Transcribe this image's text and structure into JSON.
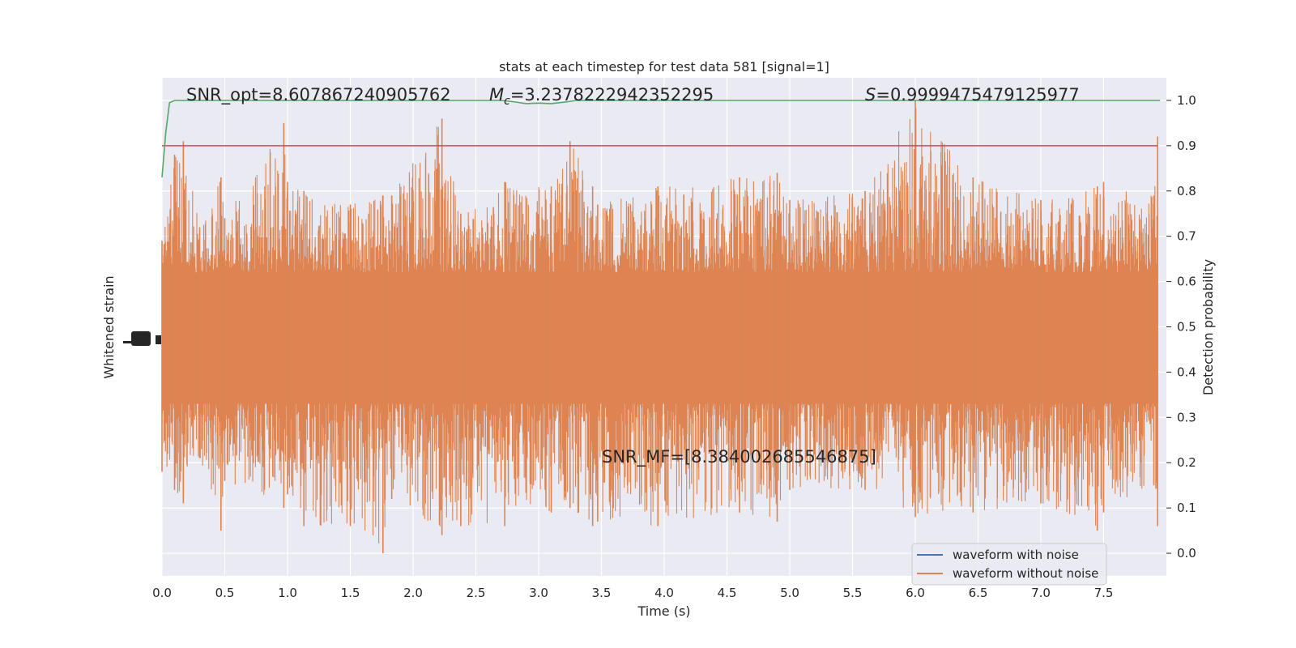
{
  "chart_data": {
    "type": "line",
    "title": "stats at each timestep for test data 581 [signal=1]",
    "xlabel": "Time (s)",
    "ylabel_left": "Whitened strain",
    "ylabel_right": "Detection probability",
    "xlim": [
      0.0,
      8.0
    ],
    "ylim_right": [
      -0.05,
      1.05
    ],
    "x_ticks": [
      "0.0",
      "0.5",
      "1.0",
      "1.5",
      "2.0",
      "2.5",
      "3.0",
      "3.5",
      "4.0",
      "4.5",
      "5.0",
      "5.5",
      "6.0",
      "6.5",
      "7.0",
      "7.5"
    ],
    "y_ticks_right": [
      "0.0",
      "0.1",
      "0.2",
      "0.3",
      "0.4",
      "0.5",
      "0.6",
      "0.7",
      "0.8",
      "0.9",
      "1.0"
    ],
    "grid": true,
    "legend_position": "lower right",
    "annotations": {
      "snr_opt": "SNR_opt=8.607867240905762",
      "mc_symbol": "M",
      "mc_sub": "c",
      "mc_value": "=3.2378222942352295",
      "s_symbol": "S",
      "s_value": "=0.9999475479125977",
      "snr_mf": "SNR_MF=[8.384002685546875]"
    },
    "series": [
      {
        "name": "waveform with noise",
        "color": "#4c72b0"
      },
      {
        "name": "waveform without noise",
        "color": "#dd8452"
      }
    ],
    "threshold": {
      "value": 0.9,
      "color": "#c44e52"
    },
    "detection_probability": {
      "color": "#55a868",
      "x": [
        0.0,
        0.03,
        0.06,
        0.1,
        0.15,
        0.5,
        1.0,
        2.0,
        2.5,
        2.7,
        2.8,
        2.9,
        3.0,
        3.1,
        3.2,
        3.3,
        3.5,
        4.0,
        5.0,
        6.0,
        7.0,
        7.95
      ],
      "y": [
        0.83,
        0.93,
        0.995,
        1.0,
        1.0,
        1.0,
        1.0,
        1.0,
        1.0,
        1.0,
        0.997,
        0.993,
        0.994,
        0.993,
        0.996,
        1.0,
        1.0,
        1.0,
        1.0,
        1.0,
        1.0,
        1.0
      ]
    },
    "strain_envelope": {
      "x": [
        0.0,
        0.1,
        0.17,
        0.3,
        0.47,
        0.5,
        0.97,
        1.0,
        1.13,
        1.5,
        1.76,
        1.83,
        2.23,
        2.38,
        2.73,
        3.1,
        3.25,
        3.43,
        3.47,
        3.95,
        4.6,
        4.9,
        5.0,
        5.6,
        6.0,
        6.46,
        7.0,
        7.45,
        7.5,
        7.9,
        7.93
      ],
      "y_top": [
        0.69,
        0.88,
        0.91,
        0.72,
        0.83,
        0.74,
        0.95,
        0.82,
        0.8,
        0.77,
        0.79,
        0.79,
        0.96,
        0.75,
        0.82,
        0.81,
        0.91,
        0.81,
        0.77,
        0.81,
        0.83,
        0.84,
        0.78,
        0.8,
        1.0,
        0.83,
        0.78,
        0.81,
        0.82,
        0.79,
        0.92
      ],
      "y_bottom": [
        0.18,
        0.14,
        0.11,
        0.21,
        0.05,
        0.16,
        0.1,
        0.13,
        0.06,
        0.06,
        0.0,
        0.12,
        0.04,
        0.06,
        0.06,
        0.09,
        0.1,
        0.06,
        0.07,
        0.06,
        0.09,
        0.07,
        0.14,
        0.14,
        0.08,
        0.09,
        0.11,
        0.05,
        0.09,
        0.15,
        0.06
      ]
    }
  }
}
